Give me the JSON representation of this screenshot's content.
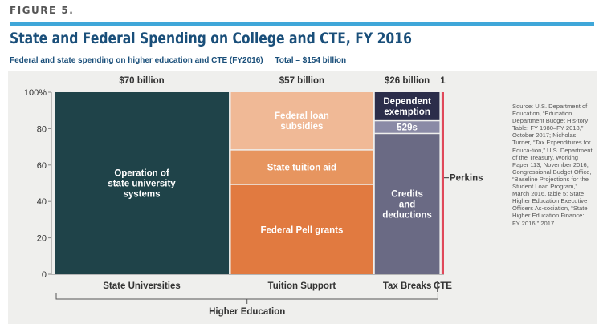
{
  "figure_label": "FIGURE 5.",
  "title": "State and Federal Spending on College and CTE, FY 2016",
  "subtitle": "Federal and state spending on higher education and CTE (FY2016)",
  "total": "Total – $154 billion",
  "source": "Source: U.S. Department of Education, “Education Department Budget His-tory Table: FY 1980–FY 2018,” October 2017; Nicholas Turner, “Tax Expenditures for Educa-tion,” U.S. Department of the Treasury, Working Paper 113, November 2016; Congressional Budget Office, “Baseline Projections for the Student Loan Program,” March 2016, table 5; State Higher Education Executive Officers As-sociation, “State Higher Education Finance: FY 2016,” 2017",
  "colors": {
    "accent_rule": "#3fa7d9",
    "title": "#1a4f7a",
    "state_university": "#1f4349",
    "loan_subsidies": "#f0b996",
    "state_tuition_aid": "#e7955f",
    "pell_grants": "#e17a40",
    "dependent_exemption": "#2b2d4a",
    "529s": "#8a8aa6",
    "credits_deductions": "#6a6a84",
    "perkins": "#e0485a",
    "panel": "#efefed"
  },
  "chart_data": {
    "type": "bar",
    "subtype": "marimekko",
    "ylim": [
      0,
      100
    ],
    "yticks": [
      0,
      20,
      40,
      60,
      80,
      100
    ],
    "ytick_labels": [
      "0",
      "20",
      "40",
      "60",
      "80",
      "100%"
    ],
    "columns": [
      {
        "total_label": "$70 billion",
        "total": 70,
        "category": "State Universities",
        "segments": [
          {
            "name": "Operation of state university systems",
            "lines": [
              "Operation of",
              "state university",
              "systems"
            ],
            "share": 100,
            "color_key": "state_university"
          }
        ]
      },
      {
        "total_label": "$57 billion",
        "total": 57,
        "category": "Tuition Support",
        "segments": [
          {
            "name": "Federal Pell grants",
            "lines": [
              "Federal Pell grants"
            ],
            "share": 49,
            "color_key": "pell_grants"
          },
          {
            "name": "State tuition aid",
            "lines": [
              "State tuition aid"
            ],
            "share": 19,
            "color_key": "state_tuition_aid"
          },
          {
            "name": "Federal loan subsidies",
            "lines": [
              "Federal loan",
              "subsidies"
            ],
            "share": 32,
            "color_key": "loan_subsidies"
          }
        ]
      },
      {
        "total_label": "$26 billion",
        "total": 26,
        "category": "Tax Breaks",
        "segments": [
          {
            "name": "Credits and deductions",
            "lines": [
              "Credits",
              "and",
              "deductions"
            ],
            "share": 77,
            "color_key": "credits_deductions"
          },
          {
            "name": "529s",
            "lines": [
              "529s"
            ],
            "share": 7,
            "color_key": "529s"
          },
          {
            "name": "Dependent exemption",
            "lines": [
              "Dependent",
              "exemption"
            ],
            "share": 16,
            "color_key": "dependent_exemption"
          }
        ]
      },
      {
        "total_label": "1",
        "total": 1,
        "category": "CTE",
        "segments": [
          {
            "name": "Perkins",
            "lines": [],
            "share": 100,
            "color_key": "perkins"
          }
        ]
      }
    ],
    "annotations": [
      {
        "text": "Perkins"
      }
    ],
    "group_label": "Higher Education"
  }
}
